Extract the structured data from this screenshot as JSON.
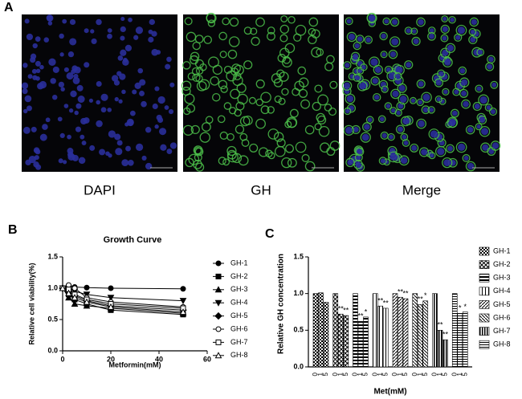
{
  "panels": {
    "a": {
      "label": "A",
      "captions": [
        "DAPI",
        "GH",
        "Merge"
      ]
    },
    "b": {
      "label": "B"
    },
    "c": {
      "label": "C"
    }
  },
  "chart_data": [
    {
      "type": "line",
      "title": "Growth Curve",
      "x_label": "Metformin(mM)",
      "y_label": "Relative cell viability(%)",
      "x": [
        0,
        2.5,
        5,
        10,
        20,
        50
      ],
      "xlim": [
        0,
        60
      ],
      "xticks": [
        0,
        20,
        40,
        60
      ],
      "ylim": [
        0,
        1.5
      ],
      "yticks": [
        {
          "value": 0,
          "label": "0.0"
        },
        0.5,
        {
          "value": 1,
          "label": "1.0"
        },
        1.5
      ],
      "series": [
        {
          "name": "GH-1",
          "color": "#000000",
          "marker": "circle",
          "values": [
            1.0,
            1.02,
            1.02,
            1.01,
            1.0,
            0.99
          ]
        },
        {
          "name": "GH-2",
          "color": "#000000",
          "marker": "square",
          "values": [
            1.0,
            0.9,
            0.82,
            0.75,
            0.65,
            0.58
          ]
        },
        {
          "name": "GH-3",
          "color": "#000000",
          "marker": "triangle-up",
          "values": [
            1.0,
            0.85,
            0.75,
            0.72,
            0.68,
            0.6
          ]
        },
        {
          "name": "GH-4",
          "color": "#000000",
          "marker": "triangle-down",
          "values": [
            1.0,
            1.0,
            0.95,
            0.9,
            0.85,
            0.8
          ]
        },
        {
          "name": "GH-5",
          "color": "#000000",
          "marker": "diamond",
          "values": [
            1.0,
            0.95,
            0.88,
            0.8,
            0.72,
            0.65
          ]
        },
        {
          "name": "GH-6",
          "color": "#000000",
          "marker": "circle-open",
          "values": [
            1.0,
            1.05,
            1.0,
            0.85,
            0.78,
            0.7
          ]
        },
        {
          "name": "GH-7",
          "color": "#000000",
          "marker": "square-open",
          "values": [
            1.0,
            0.98,
            0.9,
            0.82,
            0.75,
            0.68
          ]
        },
        {
          "name": "GH-8",
          "color": "#000000",
          "marker": "triangle-open",
          "values": [
            1.0,
            0.92,
            0.85,
            0.78,
            0.7,
            0.62
          ]
        }
      ]
    },
    {
      "type": "bar",
      "x_label": "Met(mM)",
      "y_label": "Relative GH concentration",
      "categories": [
        "0",
        "1",
        "5"
      ],
      "ylim": [
        0,
        1.5
      ],
      "yticks": [
        {
          "value": 0,
          "label": "0.0"
        },
        0.5,
        {
          "value": 1,
          "label": "1.0"
        },
        1.5
      ],
      "series": [
        {
          "name": "GH-1",
          "pattern": "checker",
          "values": [
            1.0,
            1.01,
            0.88
          ],
          "significance": [
            null,
            null,
            null
          ]
        },
        {
          "name": "GH-2",
          "pattern": "cross",
          "values": [
            1.0,
            0.72,
            0.7
          ],
          "significance": [
            null,
            "**",
            "**"
          ]
        },
        {
          "name": "GH-3",
          "pattern": "hstripe",
          "values": [
            1.0,
            0.62,
            0.68
          ],
          "significance": [
            null,
            "**",
            "*"
          ]
        },
        {
          "name": "GH-4",
          "pattern": "vstripe",
          "values": [
            1.0,
            0.83,
            0.8
          ],
          "significance": [
            null,
            "**",
            "**"
          ]
        },
        {
          "name": "GH-5",
          "pattern": "diag",
          "values": [
            1.0,
            0.95,
            0.93
          ],
          "significance": [
            null,
            "**",
            "**"
          ]
        },
        {
          "name": "GH-6",
          "pattern": "diag2",
          "values": [
            1.0,
            0.85,
            0.9
          ],
          "significance": [
            null,
            "**",
            "*"
          ]
        },
        {
          "name": "GH-7",
          "pattern": "vlines",
          "values": [
            1.0,
            0.5,
            0.37
          ],
          "significance": [
            null,
            "**",
            "**"
          ]
        },
        {
          "name": "GH-8",
          "pattern": "hlines",
          "values": [
            1.0,
            0.73,
            0.75
          ],
          "significance": [
            null,
            "*",
            "*"
          ]
        }
      ]
    }
  ]
}
